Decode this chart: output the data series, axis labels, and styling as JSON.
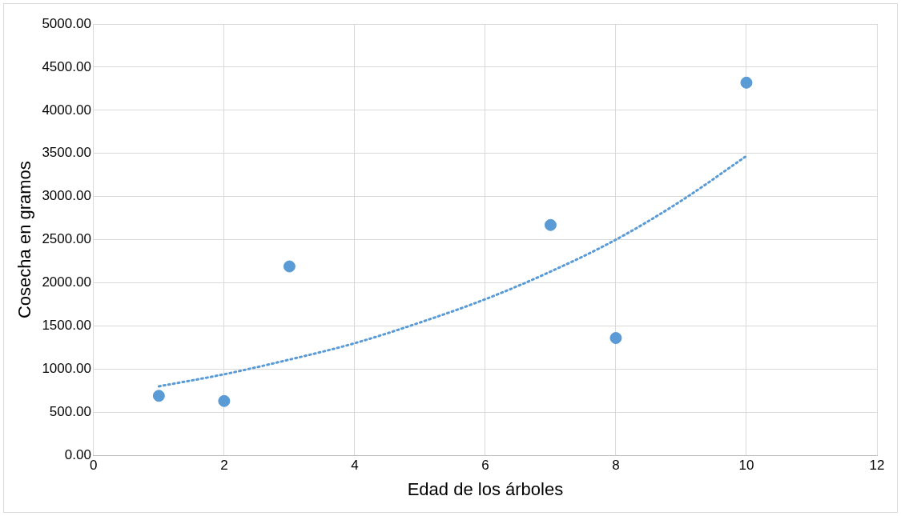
{
  "chart_data": {
    "type": "scatter",
    "xlabel": "Edad de los árboles",
    "ylabel": "Cosecha en gramos",
    "x": [
      1,
      2,
      3,
      7,
      8,
      10
    ],
    "series": [
      {
        "color": "#5b9bd5",
        "marker": "circle",
        "values": [
          690,
          630,
          2190,
          2670,
          1360,
          4320
        ]
      },
      {
        "type": "line",
        "color": "#5b9bd5",
        "line_style": "dotted",
        "marker": "none",
        "x": [
          1,
          2,
          3,
          4,
          5,
          6,
          7,
          8,
          9,
          10
        ],
        "values": [
          800,
          940,
          1110,
          1300,
          1540,
          1810,
          2130,
          2500,
          2950,
          3470
        ]
      }
    ],
    "xlim": [
      0,
      12
    ],
    "xticks": [
      0,
      2,
      4,
      6,
      8,
      10,
      12
    ],
    "ylim": [
      0,
      5000
    ],
    "yticks": [
      {
        "value": 0,
        "label": "0.00"
      },
      {
        "value": 500,
        "label": "500.00"
      },
      {
        "value": 1000,
        "label": "1000.00"
      },
      {
        "value": 1500,
        "label": "1500.00"
      },
      {
        "value": 2000,
        "label": "2000.00"
      },
      {
        "value": 2500,
        "label": "2500.00"
      },
      {
        "value": 3000,
        "label": "3000.00"
      },
      {
        "value": 3500,
        "label": "3500.00"
      },
      {
        "value": 4000,
        "label": "4000.00"
      },
      {
        "value": 4500,
        "label": "4500.00"
      },
      {
        "value": 5000,
        "label": "5000.00"
      }
    ],
    "grid": true,
    "legend": false
  }
}
